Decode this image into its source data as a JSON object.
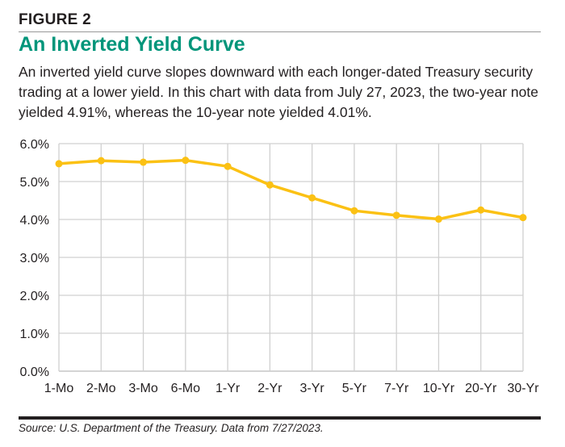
{
  "figure_label": "FIGURE 2",
  "title": "An Inverted Yield Curve",
  "subtitle": "An inverted yield curve slopes downward with each longer-dated Treasury security trading at a lower yield. In this chart with data from July 27, 2023, the two-year note yielded 4.91%, whereas the 10-year note yielded 4.01%.",
  "source": "Source: U.S. Department of the Treasury. Data from 7/27/2023.",
  "colors": {
    "title": "#00957a",
    "line": "#fbc114",
    "grid": "#d0d0d0"
  },
  "chart_data": {
    "type": "line",
    "categories": [
      "1-Mo",
      "2-Mo",
      "3-Mo",
      "6-Mo",
      "1-Yr",
      "2-Yr",
      "3-Yr",
      "5-Yr",
      "7-Yr",
      "10-Yr",
      "20-Yr",
      "30-Yr"
    ],
    "values": [
      5.47,
      5.55,
      5.51,
      5.56,
      5.4,
      4.91,
      4.57,
      4.23,
      4.11,
      4.01,
      4.25,
      4.05
    ],
    "yticks": [
      "0.0%",
      "1.0%",
      "2.0%",
      "3.0%",
      "4.0%",
      "5.0%",
      "6.0%"
    ],
    "ylim": [
      0,
      6
    ],
    "grid": true,
    "markers": true
  }
}
